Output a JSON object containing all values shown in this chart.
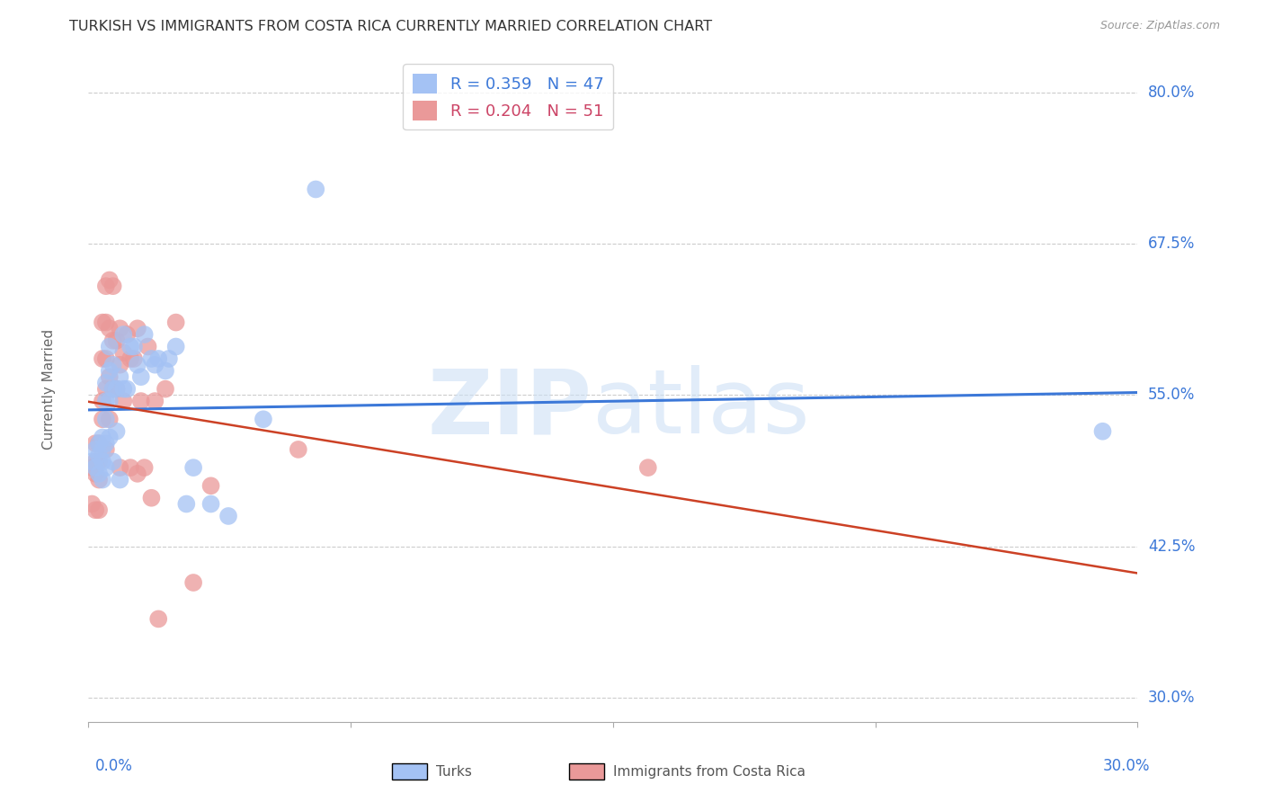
{
  "title": "TURKISH VS IMMIGRANTS FROM COSTA RICA CURRENTLY MARRIED CORRELATION CHART",
  "source": "Source: ZipAtlas.com",
  "ylabel": "Currently Married",
  "ytick_labels": [
    "80.0%",
    "67.5%",
    "55.0%",
    "42.5%",
    "30.0%"
  ],
  "ytick_values": [
    0.8,
    0.675,
    0.55,
    0.425,
    0.3
  ],
  "xmin": 0.0,
  "xmax": 0.3,
  "ymin": 0.28,
  "ymax": 0.83,
  "turks_color": "#a4c2f4",
  "costa_color": "#ea9999",
  "line_turks_color": "#3c78d8",
  "line_costa_color": "#cc4125",
  "turks_scatter_x": [
    0.001,
    0.002,
    0.002,
    0.003,
    0.003,
    0.003,
    0.004,
    0.004,
    0.004,
    0.004,
    0.005,
    0.005,
    0.005,
    0.005,
    0.005,
    0.006,
    0.006,
    0.006,
    0.006,
    0.007,
    0.007,
    0.007,
    0.008,
    0.008,
    0.009,
    0.009,
    0.01,
    0.01,
    0.011,
    0.012,
    0.013,
    0.014,
    0.015,
    0.016,
    0.018,
    0.019,
    0.02,
    0.022,
    0.023,
    0.025,
    0.028,
    0.03,
    0.035,
    0.04,
    0.05,
    0.065,
    0.29
  ],
  "turks_scatter_y": [
    0.495,
    0.505,
    0.49,
    0.51,
    0.5,
    0.485,
    0.515,
    0.505,
    0.495,
    0.48,
    0.56,
    0.545,
    0.53,
    0.51,
    0.49,
    0.59,
    0.57,
    0.545,
    0.515,
    0.575,
    0.555,
    0.495,
    0.555,
    0.52,
    0.565,
    0.48,
    0.6,
    0.555,
    0.555,
    0.59,
    0.59,
    0.575,
    0.565,
    0.6,
    0.58,
    0.575,
    0.58,
    0.57,
    0.58,
    0.59,
    0.46,
    0.49,
    0.46,
    0.45,
    0.53,
    0.72,
    0.52
  ],
  "costa_scatter_x": [
    0.001,
    0.001,
    0.002,
    0.002,
    0.002,
    0.002,
    0.003,
    0.003,
    0.003,
    0.003,
    0.004,
    0.004,
    0.004,
    0.004,
    0.005,
    0.005,
    0.005,
    0.005,
    0.005,
    0.006,
    0.006,
    0.006,
    0.006,
    0.007,
    0.007,
    0.007,
    0.008,
    0.008,
    0.009,
    0.009,
    0.009,
    0.01,
    0.01,
    0.011,
    0.012,
    0.012,
    0.013,
    0.014,
    0.014,
    0.015,
    0.016,
    0.017,
    0.018,
    0.019,
    0.02,
    0.022,
    0.025,
    0.03,
    0.035,
    0.06,
    0.16
  ],
  "costa_scatter_y": [
    0.49,
    0.46,
    0.51,
    0.485,
    0.455,
    0.495,
    0.51,
    0.495,
    0.48,
    0.455,
    0.545,
    0.61,
    0.58,
    0.53,
    0.64,
    0.61,
    0.58,
    0.555,
    0.505,
    0.645,
    0.605,
    0.565,
    0.53,
    0.64,
    0.595,
    0.555,
    0.595,
    0.555,
    0.605,
    0.575,
    0.49,
    0.585,
    0.545,
    0.6,
    0.58,
    0.49,
    0.58,
    0.605,
    0.485,
    0.545,
    0.49,
    0.59,
    0.465,
    0.545,
    0.365,
    0.555,
    0.61,
    0.395,
    0.475,
    0.505,
    0.49
  ],
  "turks_R": 0.359,
  "turks_N": 47,
  "costa_R": 0.204,
  "costa_N": 51
}
